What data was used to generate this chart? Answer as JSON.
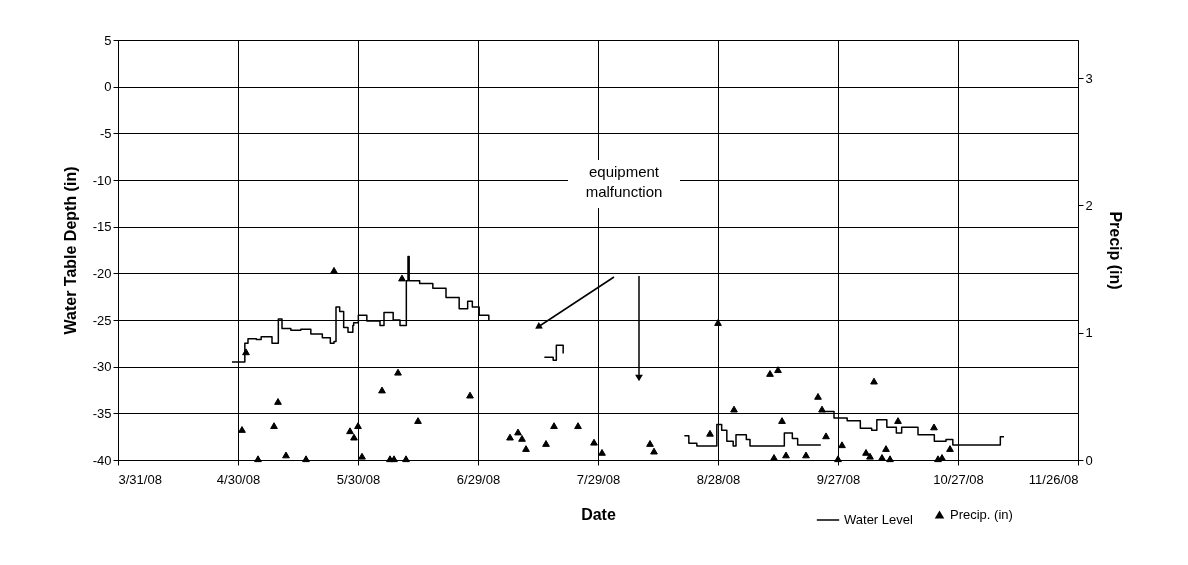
{
  "chart_data": {
    "type": "step",
    "xlabel": "Date",
    "ylabel": "Water Table Depth (in)",
    "y2label": "Precip (in)",
    "xlim": [
      "2008-03-31",
      "2008-11-26"
    ],
    "xticks": [
      {
        "value": "2008-03-31",
        "label": "3/31/08"
      },
      {
        "value": "2008-04-30",
        "label": "4/30/08"
      },
      {
        "value": "2008-05-30",
        "label": "5/30/08"
      },
      {
        "value": "2008-06-29",
        "label": "6/29/08"
      },
      {
        "value": "2008-07-29",
        "label": "7/29/08"
      },
      {
        "value": "2008-08-28",
        "label": "8/28/08"
      },
      {
        "value": "2008-09-27",
        "label": "9/27/08"
      },
      {
        "value": "2008-10-27",
        "label": "10/27/08"
      },
      {
        "value": "2008-11-26",
        "label": "11/26/08"
      }
    ],
    "ylim": [
      -40,
      5
    ],
    "yticks": [
      5,
      0,
      -5,
      -10,
      -15,
      -20,
      -25,
      -30,
      -35,
      -40
    ],
    "y2lim": [
      0,
      3.3
    ],
    "y2ticks": [
      0,
      1,
      2,
      3
    ],
    "grid": true,
    "legend": "bottom right",
    "annotations": [
      "equipment malfunction"
    ],
    "series": [
      {
        "name": "Water Level",
        "color": "#000000",
        "marker": "none",
        "line_style": "solid",
        "x": [
          "2008-04-28T12:00",
          "2008-05-01T12:00",
          "2008-05-01T17:00",
          "2008-05-02T12:00",
          "2008-05-04T14:00",
          "2008-05-05T19:00",
          "2008-05-08T12:00",
          "2008-05-09T19:00",
          "2008-05-10T02:00",
          "2008-05-10T19:00",
          "2008-05-11T00:00",
          "2008-05-13T05:00",
          "2008-05-15T17:00",
          "2008-05-18T05:00",
          "2008-05-21T02:00",
          "2008-05-23T02:00",
          "2008-05-24T00:00",
          "2008-05-24T12:00",
          "2008-05-25T10:00",
          "2008-05-26T10:00",
          "2008-05-27T12:00",
          "2008-05-28T17:00",
          "2008-05-28T22:00",
          "2008-05-30T02:00",
          "2008-06-01T05:00",
          "2008-06-04T12:00",
          "2008-06-05T12:00",
          "2008-06-07T19:00",
          "2008-06-09T12:00",
          "2008-06-10T19:00",
          "2008-06-11T02:00",
          "2008-06-11T12:00",
          "2008-06-11T19:00",
          "2008-06-14T10:00",
          "2008-06-17T17:00",
          "2008-06-21T00:00",
          "2008-06-24T07:00",
          "2008-06-26T10:00",
          "2008-06-27T14:00",
          "2008-06-29T07:00",
          "2008-07-01T17:00",
          "2008-07-08T00:00",
          "2008-07-15T14:00",
          "2008-07-17T19:00",
          "2008-07-18T14:00",
          "2008-07-19T05:00",
          "2008-07-20T07:00",
          "2008-08-05T00:00",
          "2008-08-19T14:00",
          "2008-08-20T17:00",
          "2008-08-22T17:00",
          "2008-08-26T05:00",
          "2008-08-27T17:00",
          "2008-08-28T22:00",
          "2008-08-30T05:00",
          "2008-08-31T19:00",
          "2008-09-01T12:00",
          "2008-09-04T02:00",
          "2008-09-05T00:00",
          "2008-09-12T10:00",
          "2008-09-13T14:00",
          "2008-09-15T14:00",
          "2008-09-16T22:00",
          "2008-09-22T17:00",
          "2008-09-22T20:00",
          "2008-09-23T05:00",
          "2008-09-26T00:00",
          "2008-09-29T07:00",
          "2008-10-02T14:00",
          "2008-10-05T10:00",
          "2008-10-06T17:00",
          "2008-10-09T05:00",
          "2008-10-11T14:00",
          "2008-10-12T22:00",
          "2008-10-17T00:00",
          "2008-10-21T02:00",
          "2008-10-24T00:00",
          "2008-10-25T17:00",
          "2008-11-05T10:00",
          "2008-11-06T14:00",
          "2008-11-07T12:00"
        ],
        "values": [
          -29.5,
          -29.5,
          -27.5,
          -27.0,
          -27.1,
          -26.8,
          -27.5,
          -27.5,
          -24.9,
          -24.9,
          -25.9,
          -26.1,
          -26.0,
          -26.5,
          -26.9,
          -27.5,
          -27.3,
          -23.6,
          -24.1,
          -25.8,
          -26.3,
          -25.6,
          -25.3,
          -24.5,
          -25.1,
          -25.6,
          -24.2,
          -25.0,
          -25.6,
          -25.6,
          -20.8,
          -18.2,
          -20.8,
          -21.1,
          -21.6,
          -22.6,
          -23.8,
          -23.0,
          -23.6,
          -24.5,
          -25.0,
          null,
          -29.0,
          -29.3,
          -27.7,
          -27.7,
          -28.6,
          null,
          -37.4,
          -38.2,
          -38.5,
          -38.5,
          -36.2,
          -36.8,
          -38.0,
          -38.5,
          -37.3,
          -37.8,
          -38.5,
          -38.5,
          -37.1,
          -37.7,
          -38.4,
          -38.4,
          null,
          -34.8,
          -35.5,
          -35.8,
          -36.6,
          -36.8,
          -35.7,
          -36.5,
          -37.1,
          -36.5,
          -37.3,
          -38.0,
          -37.8,
          -38.4,
          -38.4,
          -37.5,
          -37.5
        ]
      },
      {
        "name": "Precip. (in)",
        "type": "scatter",
        "axis": "y2",
        "color": "#000000",
        "marker": "triangle",
        "x": [
          "2008-05-01",
          "2008-05-02",
          "2008-05-05",
          "2008-05-09",
          "2008-05-10",
          "2008-05-12",
          "2008-05-17",
          "2008-05-24",
          "2008-05-28",
          "2008-05-29",
          "2008-05-30",
          "2008-05-31",
          "2008-06-05",
          "2008-06-07",
          "2008-06-08",
          "2008-06-09",
          "2008-06-10",
          "2008-06-11",
          "2008-06-14",
          "2008-06-27",
          "2008-07-07",
          "2008-07-09",
          "2008-07-10",
          "2008-07-11",
          "2008-07-16",
          "2008-07-18",
          "2008-07-24",
          "2008-07-28",
          "2008-07-30",
          "2008-08-11",
          "2008-08-12",
          "2008-08-26",
          "2008-08-28",
          "2008-09-01",
          "2008-09-10",
          "2008-09-11",
          "2008-09-12",
          "2008-09-13",
          "2008-09-14",
          "2008-09-19",
          "2008-09-22",
          "2008-09-23",
          "2008-09-24",
          "2008-09-27",
          "2008-09-28",
          "2008-10-04",
          "2008-10-05",
          "2008-10-06",
          "2008-10-08",
          "2008-10-09",
          "2008-10-10",
          "2008-10-12",
          "2008-10-21",
          "2008-10-22",
          "2008-10-23",
          "2008-10-25"
        ],
        "values": [
          0.24,
          0.85,
          0.01,
          0.27,
          0.46,
          0.04,
          0.01,
          1.49,
          0.23,
          0.18,
          0.27,
          0.03,
          0.55,
          0.01,
          0.01,
          0.69,
          1.43,
          0.01,
          0.31,
          0.51,
          0.18,
          0.22,
          0.17,
          0.09,
          0.13,
          0.27,
          0.27,
          0.14,
          0.06,
          0.13,
          0.07,
          0.21,
          1.08,
          0.4,
          0.68,
          0.02,
          0.71,
          0.31,
          0.04,
          0.04,
          0.5,
          0.4,
          0.19,
          0.01,
          0.12,
          0.06,
          0.03,
          0.62,
          0.02,
          0.09,
          0.01,
          0.31,
          0.26,
          0.01,
          0.02,
          0.09
        ]
      }
    ]
  }
}
